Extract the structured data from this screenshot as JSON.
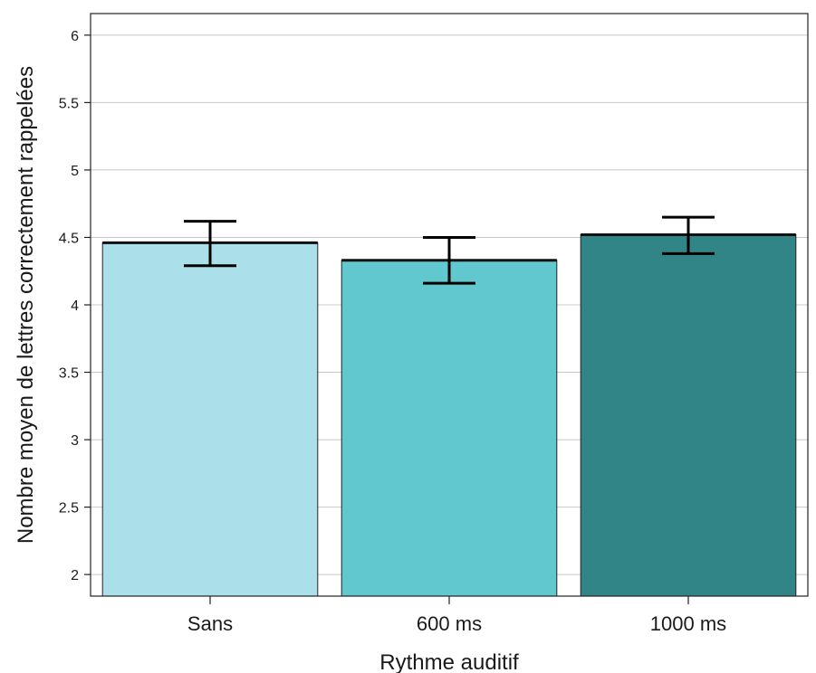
{
  "chart_data": {
    "type": "bar",
    "categories": [
      "Sans",
      "600 ms",
      "1000 ms"
    ],
    "values": [
      4.46,
      4.33,
      4.52
    ],
    "error_bars": [
      {
        "low": 4.29,
        "high": 4.62
      },
      {
        "low": 4.16,
        "high": 4.5
      },
      {
        "low": 4.38,
        "high": 4.65
      }
    ],
    "colors": [
      "#abdfea",
      "#62c8d0",
      "#318587"
    ],
    "xlabel": "Rythme auditif",
    "ylabel": "Nombre moyen de lettres correctement rappelées",
    "ylim": [
      1.84,
      6.16
    ],
    "yticks": [
      "2",
      "2.5",
      "3",
      "3.5",
      "4",
      "4.5",
      "5",
      "5.5",
      "6"
    ],
    "grid": "horizontal",
    "legend": "none"
  }
}
